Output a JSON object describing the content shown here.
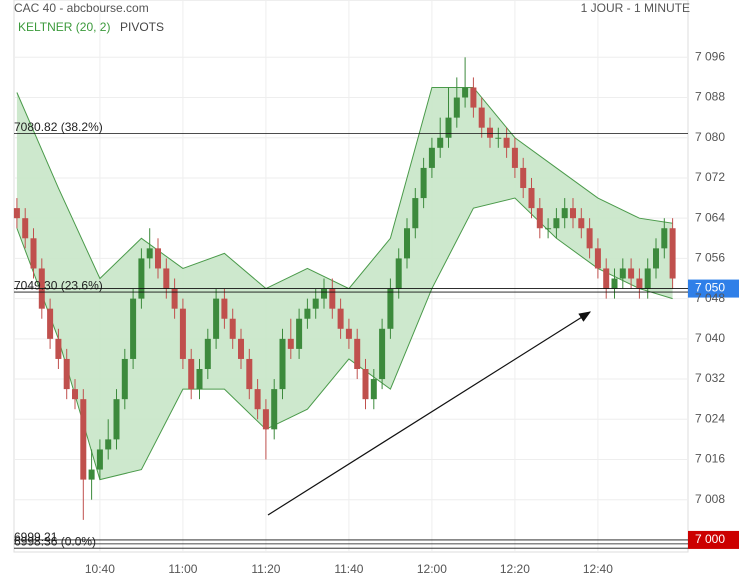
{
  "header": {
    "title": "CAC 40 - abcbourse.com",
    "period": "1 JOUR - 1 MINUTE",
    "indicators": [
      "KELTNER (20, 2)",
      "PIVOTS"
    ]
  },
  "chart_data": {
    "type": "candlestick",
    "categories": [
      "10:20",
      "10:22",
      "10:24",
      "10:26",
      "10:28",
      "10:30",
      "10:32",
      "10:34",
      "10:36",
      "10:38",
      "10:40",
      "10:42",
      "10:44",
      "10:46",
      "10:48",
      "10:50",
      "10:52",
      "10:54",
      "10:56",
      "10:58",
      "11:00",
      "11:02",
      "11:04",
      "11:06",
      "11:08",
      "11:10",
      "11:12",
      "11:14",
      "11:16",
      "11:18",
      "11:20",
      "11:22",
      "11:24",
      "11:26",
      "11:28",
      "11:30",
      "11:32",
      "11:34",
      "11:36",
      "11:38",
      "11:40",
      "11:42",
      "11:44",
      "11:46",
      "11:48",
      "11:50",
      "11:52",
      "11:54",
      "11:56",
      "11:58",
      "12:00",
      "12:02",
      "12:04",
      "12:06",
      "12:08",
      "12:10",
      "12:12",
      "12:14",
      "12:16",
      "12:18",
      "12:20",
      "12:22",
      "12:24",
      "12:26",
      "12:28",
      "12:30",
      "12:32",
      "12:34",
      "12:36",
      "12:38",
      "12:40",
      "12:42",
      "12:44",
      "12:46",
      "12:48",
      "12:50",
      "12:52",
      "12:54",
      "12:56",
      "12:58"
    ],
    "ohlc": [
      [
        7066,
        7068,
        7062,
        7064
      ],
      [
        7064,
        7066,
        7058,
        7060
      ],
      [
        7060,
        7062,
        7052,
        7054
      ],
      [
        7054,
        7056,
        7044,
        7046
      ],
      [
        7046,
        7048,
        7038,
        7040
      ],
      [
        7040,
        7042,
        7034,
        7036
      ],
      [
        7036,
        7038,
        7028,
        7030
      ],
      [
        7030,
        7032,
        7026,
        7028
      ],
      [
        7028,
        7030,
        7004,
        7012
      ],
      [
        7012,
        7018,
        7008,
        7014
      ],
      [
        7014,
        7020,
        7012,
        7018
      ],
      [
        7018,
        7024,
        7016,
        7020
      ],
      [
        7020,
        7030,
        7018,
        7028
      ],
      [
        7028,
        7038,
        7026,
        7036
      ],
      [
        7036,
        7050,
        7034,
        7048
      ],
      [
        7048,
        7058,
        7046,
        7056
      ],
      [
        7056,
        7062,
        7054,
        7058
      ],
      [
        7058,
        7060,
        7052,
        7054
      ],
      [
        7054,
        7056,
        7048,
        7050
      ],
      [
        7050,
        7052,
        7044,
        7046
      ],
      [
        7046,
        7048,
        7034,
        7036
      ],
      [
        7036,
        7038,
        7028,
        7030
      ],
      [
        7030,
        7036,
        7028,
        7034
      ],
      [
        7034,
        7042,
        7032,
        7040
      ],
      [
        7040,
        7050,
        7038,
        7048
      ],
      [
        7048,
        7050,
        7042,
        7044
      ],
      [
        7044,
        7046,
        7038,
        7040
      ],
      [
        7040,
        7042,
        7034,
        7036
      ],
      [
        7036,
        7038,
        7028,
        7030
      ],
      [
        7030,
        7032,
        7024,
        7026
      ],
      [
        7026,
        7028,
        7016,
        7022
      ],
      [
        7022,
        7032,
        7020,
        7030
      ],
      [
        7030,
        7042,
        7028,
        7040
      ],
      [
        7040,
        7044,
        7036,
        7038
      ],
      [
        7038,
        7046,
        7036,
        7044
      ],
      [
        7044,
        7048,
        7042,
        7046
      ],
      [
        7046,
        7050,
        7044,
        7048
      ],
      [
        7048,
        7052,
        7046,
        7050
      ],
      [
        7050,
        7052,
        7044,
        7046
      ],
      [
        7046,
        7048,
        7040,
        7042
      ],
      [
        7042,
        7044,
        7038,
        7040
      ],
      [
        7040,
        7042,
        7032,
        7034
      ],
      [
        7034,
        7036,
        7026,
        7028
      ],
      [
        7028,
        7034,
        7026,
        7032
      ],
      [
        7032,
        7044,
        7030,
        7042
      ],
      [
        7042,
        7052,
        7040,
        7050
      ],
      [
        7050,
        7058,
        7048,
        7056
      ],
      [
        7056,
        7064,
        7054,
        7062
      ],
      [
        7062,
        7070,
        7060,
        7068
      ],
      [
        7068,
        7076,
        7066,
        7074
      ],
      [
        7074,
        7080,
        7072,
        7078
      ],
      [
        7078,
        7084,
        7076,
        7080
      ],
      [
        7080,
        7090,
        7078,
        7084
      ],
      [
        7084,
        7092,
        7082,
        7088
      ],
      [
        7088,
        7096,
        7086,
        7090
      ],
      [
        7090,
        7092,
        7084,
        7086
      ],
      [
        7086,
        7088,
        7080,
        7082
      ],
      [
        7082,
        7084,
        7078,
        7080
      ],
      [
        7080,
        7082,
        7078,
        7080
      ],
      [
        7080,
        7082,
        7076,
        7078
      ],
      [
        7078,
        7080,
        7072,
        7074
      ],
      [
        7074,
        7076,
        7068,
        7070
      ],
      [
        7070,
        7072,
        7064,
        7066
      ],
      [
        7066,
        7068,
        7060,
        7062
      ],
      [
        7062,
        7064,
        7060,
        7062
      ],
      [
        7062,
        7066,
        7060,
        7064
      ],
      [
        7064,
        7068,
        7062,
        7066
      ],
      [
        7066,
        7068,
        7062,
        7064
      ],
      [
        7064,
        7066,
        7060,
        7062
      ],
      [
        7062,
        7064,
        7056,
        7058
      ],
      [
        7058,
        7060,
        7052,
        7054
      ],
      [
        7054,
        7056,
        7048,
        7050
      ],
      [
        7050,
        7054,
        7048,
        7052
      ],
      [
        7052,
        7056,
        7050,
        7054
      ],
      [
        7054,
        7056,
        7050,
        7052
      ],
      [
        7052,
        7054,
        7048,
        7050
      ],
      [
        7050,
        7056,
        7048,
        7054
      ],
      [
        7054,
        7060,
        7052,
        7058
      ],
      [
        7058,
        7064,
        7056,
        7062
      ],
      [
        7062,
        7064,
        7050,
        7052
      ]
    ],
    "up_color": "#3c8a3c",
    "down_color": "#c0504d",
    "keltner": {
      "x": [
        "10:20",
        "10:30",
        "10:40",
        "10:50",
        "11:00",
        "11:10",
        "11:20",
        "11:30",
        "11:40",
        "11:50",
        "12:00",
        "12:10",
        "12:20",
        "12:30",
        "12:40",
        "12:50",
        "12:58"
      ],
      "upper": [
        7089,
        7070,
        7052,
        7060,
        7054,
        7057,
        7050,
        7054,
        7050,
        7060,
        7090,
        7090,
        7080,
        7074,
        7068,
        7064,
        7063
      ],
      "lower": [
        7062,
        7040,
        7012,
        7014,
        7030,
        7030,
        7022,
        7026,
        7036,
        7030,
        7050,
        7066,
        7068,
        7060,
        7054,
        7050,
        7048
      ],
      "fill": "#c8e6c8",
      "color": "#4a9a4a"
    },
    "pivots": [
      {
        "value": 7080.82,
        "label": "7080.82  (38.2%)"
      },
      {
        "value": 7049.3,
        "label": "7049.30  (23.6%)"
      },
      {
        "value": 6999.21,
        "label": "6999.21"
      },
      {
        "value": 6998.36,
        "label": "6998.36  (0.0%)"
      }
    ],
    "price_tags": [
      {
        "value": 7050,
        "label": "7 050",
        "color": "#2f7fe8"
      },
      {
        "value": 7000,
        "label": "7 000",
        "color": "#cc0000"
      }
    ],
    "ylim": [
      6997.6,
      7107.4
    ],
    "yticks": [
      {
        "value": 7096,
        "label": "7 096"
      },
      {
        "value": 7088,
        "label": "7 088"
      },
      {
        "value": 7080,
        "label": "7 080"
      },
      {
        "value": 7072,
        "label": "7 072"
      },
      {
        "value": 7064,
        "label": "7 064"
      },
      {
        "value": 7056,
        "label": "7 056"
      },
      {
        "value": 7048,
        "label": "7 048"
      },
      {
        "value": 7040,
        "label": "7 040"
      },
      {
        "value": 7032,
        "label": "7 032"
      },
      {
        "value": 7024,
        "label": "7 024"
      },
      {
        "value": 7016,
        "label": "7 016"
      },
      {
        "value": 7008,
        "label": "7 008"
      }
    ],
    "xticks": [
      "10:40",
      "11:00",
      "11:20",
      "11:40",
      "12:00",
      "12:20",
      "12:40"
    ],
    "grid": true
  }
}
